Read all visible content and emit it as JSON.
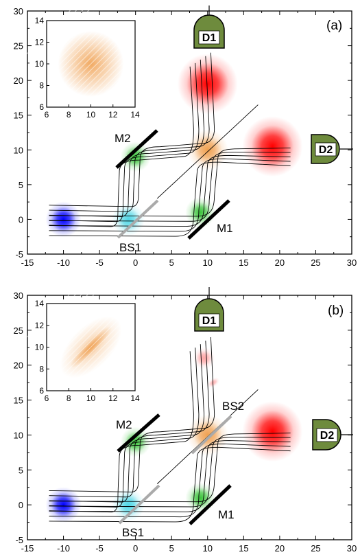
{
  "colors": {
    "detector": "#6e8b3d",
    "input_pulse": "#0000ff",
    "bs1_glow": "#4fd7e6",
    "mirror_glow": "#3cc43c",
    "bs2_glow": "#f0a050",
    "output_pulse": "#ff0000",
    "mirror": "#000000",
    "beamsplitter": "#aaaaaa"
  },
  "main_axes": {
    "xlim": [
      -15,
      30
    ],
    "ylim": [
      -5,
      30
    ],
    "xticks": [
      "-15",
      "-10",
      "-5",
      "0",
      "5",
      "10",
      "15",
      "20",
      "25",
      "30"
    ],
    "yticks": [
      "-5",
      "0",
      "5",
      "10",
      "15",
      "20",
      "25",
      "30"
    ]
  },
  "inset_axes": {
    "xlim": [
      6,
      14
    ],
    "ylim": [
      6,
      14
    ],
    "xticks": [
      "6",
      "8",
      "10",
      "12",
      "14"
    ],
    "yticks": [
      "6",
      "8",
      "10",
      "12",
      "14"
    ]
  },
  "panels": [
    {
      "label": "(a)",
      "components": {
        "d1": "D1",
        "d2": "D2",
        "m1": "M1",
        "m2": "M2",
        "bs1": "BS1"
      },
      "pulses": [
        {
          "role": "input",
          "x": -10,
          "y": 0
        },
        {
          "role": "bs1",
          "x": -1,
          "y": 0
        },
        {
          "role": "m2",
          "x": 0,
          "y": 9
        },
        {
          "role": "m1",
          "x": 9,
          "y": 1
        },
        {
          "role": "bs2",
          "x": 10,
          "y": 10
        },
        {
          "role": "output-up",
          "x": 10,
          "y": 19.5
        },
        {
          "role": "output-right",
          "x": 19,
          "y": 10.5
        }
      ]
    },
    {
      "label": "(b)",
      "components": {
        "d1": "D1",
        "d2": "D2",
        "m1": "M1",
        "m2": "M2",
        "bs1": "BS1",
        "bs2": "BS2"
      },
      "pulses": [
        {
          "role": "input",
          "x": -10,
          "y": 0
        },
        {
          "role": "bs1",
          "x": -1,
          "y": 0
        },
        {
          "role": "m2",
          "x": 0,
          "y": 9
        },
        {
          "role": "m1",
          "x": 9,
          "y": 1
        },
        {
          "role": "bs2",
          "x": 10,
          "y": 10
        },
        {
          "role": "output-up",
          "x": 9.5,
          "y": 21
        },
        {
          "role": "output-right",
          "x": 19,
          "y": 10.5
        }
      ]
    }
  ]
}
